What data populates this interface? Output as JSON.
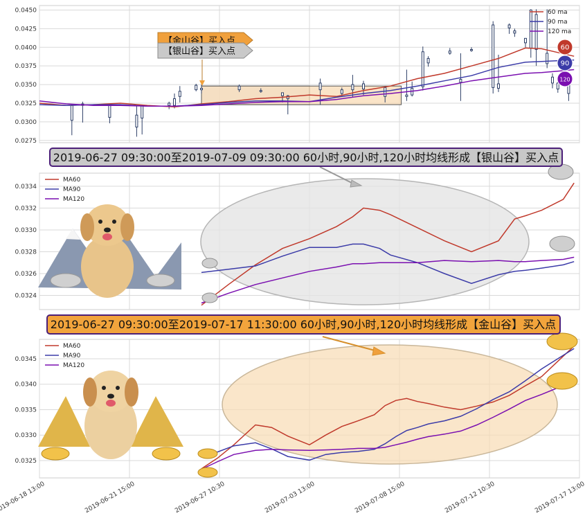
{
  "colors": {
    "ma60": "#c0392b",
    "ma90": "#3b3ba8",
    "ma120": "#7a0fb0",
    "grid": "#d9d9d9",
    "axis_border": "#cccccc",
    "gold_fill": "#f5b860",
    "gold_zone": "#f8d8b0",
    "silver_fill": "#c8c8c8",
    "silver_zone": "#e6e6e6",
    "banner_border": "#4b1f78",
    "candle": "#2c3e66"
  },
  "chart_data": [
    {
      "id": "top",
      "type": "line",
      "title": "",
      "ylim": [
        0.0272,
        0.0456
      ],
      "y_ticks": [
        "0.0275",
        "0.0300",
        "0.0325",
        "0.0350",
        "0.0375",
        "0.0400",
        "0.0425",
        "0.0450"
      ],
      "y_tick_values": [
        0.0275,
        0.03,
        0.0325,
        0.035,
        0.0375,
        0.04,
        0.0425,
        0.045
      ],
      "x_index_range": [
        0,
        100
      ],
      "grid": true,
      "legend_position": "top-right",
      "legend": [
        "60 ma",
        "90 ma",
        "120 ma"
      ],
      "series": [
        {
          "name": "60 ma",
          "x": [
            0,
            5,
            10,
            15,
            20,
            25,
            30,
            35,
            40,
            45,
            50,
            55,
            60,
            65,
            70,
            75,
            80,
            85,
            90,
            93,
            96,
            99
          ],
          "y": [
            0.0325,
            0.0322,
            0.0323,
            0.0325,
            0.0322,
            0.032,
            0.0324,
            0.0327,
            0.0331,
            0.0333,
            0.0336,
            0.0334,
            0.0342,
            0.0348,
            0.0358,
            0.0365,
            0.0375,
            0.0385,
            0.0399,
            0.0398,
            0.0393,
            0.0388
          ]
        },
        {
          "name": "90 ma",
          "x": [
            0,
            5,
            10,
            15,
            20,
            25,
            30,
            35,
            40,
            45,
            50,
            55,
            60,
            65,
            70,
            75,
            80,
            85,
            90,
            93,
            96,
            99
          ],
          "y": [
            0.0323,
            0.0322,
            0.0323,
            0.0323,
            0.0321,
            0.0321,
            0.0323,
            0.0326,
            0.0328,
            0.0328,
            0.0327,
            0.0333,
            0.0338,
            0.0342,
            0.0348,
            0.0355,
            0.0362,
            0.0373,
            0.038,
            0.0381,
            0.0382,
            0.0383
          ]
        },
        {
          "name": "120 ma",
          "x": [
            0,
            5,
            10,
            15,
            20,
            25,
            30,
            35,
            40,
            45,
            50,
            55,
            60,
            65,
            70,
            75,
            80,
            85,
            90,
            93,
            96,
            99
          ],
          "y": [
            0.0328,
            0.0324,
            0.0322,
            0.0322,
            0.0321,
            0.0321,
            0.0322,
            0.0324,
            0.0326,
            0.0327,
            0.0327,
            0.033,
            0.0335,
            0.0338,
            0.0342,
            0.0348,
            0.0355,
            0.036,
            0.0365,
            0.0366,
            0.0368,
            0.037
          ]
        }
      ],
      "candles": [
        {
          "x": 6,
          "open": 0.0322,
          "close": 0.0302,
          "high": 0.0324,
          "low": 0.0282
        },
        {
          "x": 8,
          "open": 0.0322,
          "close": 0.0324,
          "high": 0.0327,
          "low": 0.0299
        },
        {
          "x": 13,
          "open": 0.0322,
          "close": 0.0306,
          "high": 0.0323,
          "low": 0.0298
        },
        {
          "x": 18,
          "open": 0.0309,
          "close": 0.0293,
          "high": 0.0322,
          "low": 0.028
        },
        {
          "x": 19,
          "open": 0.0322,
          "close": 0.0305,
          "high": 0.0322,
          "low": 0.0283
        },
        {
          "x": 24,
          "open": 0.0325,
          "close": 0.0322,
          "high": 0.0327,
          "low": 0.0317
        },
        {
          "x": 25,
          "open": 0.0331,
          "close": 0.0322,
          "high": 0.0338,
          "low": 0.0318
        },
        {
          "x": 26,
          "open": 0.0341,
          "close": 0.0334,
          "high": 0.0348,
          "low": 0.0326
        },
        {
          "x": 29,
          "open": 0.0343,
          "close": 0.0349,
          "high": 0.0351,
          "low": 0.0341
        },
        {
          "x": 30,
          "open": 0.0345,
          "close": 0.0343,
          "high": 0.035,
          "low": 0.0338
        },
        {
          "x": 37,
          "open": 0.0343,
          "close": 0.0348,
          "high": 0.035,
          "low": 0.034
        },
        {
          "x": 41,
          "open": 0.0342,
          "close": 0.0342,
          "high": 0.0345,
          "low": 0.0339
        },
        {
          "x": 45,
          "open": 0.0339,
          "close": 0.0335,
          "high": 0.0339,
          "low": 0.0326
        },
        {
          "x": 46,
          "open": 0.0335,
          "close": 0.0331,
          "high": 0.0336,
          "low": 0.031
        },
        {
          "x": 52,
          "open": 0.0352,
          "close": 0.0343,
          "high": 0.0358,
          "low": 0.0323
        },
        {
          "x": 56,
          "open": 0.0343,
          "close": 0.0338,
          "high": 0.0346,
          "low": 0.0335
        },
        {
          "x": 58,
          "open": 0.035,
          "close": 0.0343,
          "high": 0.0363,
          "low": 0.0333
        },
        {
          "x": 60,
          "open": 0.0351,
          "close": 0.0344,
          "high": 0.0355,
          "low": 0.0336
        },
        {
          "x": 64,
          "open": 0.0334,
          "close": 0.0346,
          "high": 0.0348,
          "low": 0.0326
        },
        {
          "x": 68,
          "open": 0.0334,
          "close": 0.0336,
          "high": 0.037,
          "low": 0.0328
        },
        {
          "x": 69,
          "open": 0.0345,
          "close": 0.0336,
          "high": 0.0354,
          "low": 0.0334
        },
        {
          "x": 71,
          "open": 0.0347,
          "close": 0.0394,
          "high": 0.0401,
          "low": 0.0342
        },
        {
          "x": 72,
          "open": 0.0385,
          "close": 0.0379,
          "high": 0.0388,
          "low": 0.0374
        },
        {
          "x": 76,
          "open": 0.0395,
          "close": 0.0392,
          "high": 0.0399,
          "low": 0.039
        },
        {
          "x": 78,
          "open": 0.0353,
          "close": 0.0357,
          "high": 0.0392,
          "low": 0.0328
        },
        {
          "x": 80,
          "open": 0.0397,
          "close": 0.0396,
          "high": 0.04,
          "low": 0.0394
        },
        {
          "x": 84,
          "open": 0.043,
          "close": 0.0346,
          "high": 0.0435,
          "low": 0.0338
        },
        {
          "x": 85,
          "open": 0.0351,
          "close": 0.0345,
          "high": 0.039,
          "low": 0.034
        },
        {
          "x": 87,
          "open": 0.043,
          "close": 0.0426,
          "high": 0.0432,
          "low": 0.0418
        },
        {
          "x": 88,
          "open": 0.0422,
          "close": 0.0419,
          "high": 0.0425,
          "low": 0.0414
        },
        {
          "x": 90,
          "open": 0.0412,
          "close": 0.0406,
          "high": 0.0412,
          "low": 0.04
        },
        {
          "x": 91,
          "open": 0.045,
          "close": 0.0399,
          "high": 0.0451,
          "low": 0.0386
        },
        {
          "x": 92,
          "open": 0.0444,
          "close": 0.0397,
          "high": 0.0451,
          "low": 0.0375
        },
        {
          "x": 94,
          "open": 0.0392,
          "close": 0.0378,
          "high": 0.0451,
          "low": 0.0372
        },
        {
          "x": 95,
          "open": 0.036,
          "close": 0.0352,
          "high": 0.0365,
          "low": 0.0345
        },
        {
          "x": 96,
          "open": 0.0352,
          "close": 0.0344,
          "high": 0.0355,
          "low": 0.0339
        },
        {
          "x": 98,
          "open": 0.0354,
          "close": 0.0338,
          "high": 0.0358,
          "low": 0.0328
        }
      ],
      "zones": [
        {
          "kind": "silver",
          "x0": 30,
          "x1": 50,
          "y0": 0.0323,
          "y1": 0.0348
        },
        {
          "kind": "gold",
          "x0": 30,
          "x1": 67,
          "y0": 0.0323,
          "y1": 0.0348
        }
      ],
      "badges": [
        "60",
        "90",
        "120"
      ]
    },
    {
      "id": "silver",
      "type": "line",
      "title": "",
      "ylim": [
        0.03227,
        0.03352
      ],
      "y_ticks": [
        "0.0324",
        "0.0326",
        "0.0328",
        "0.0330",
        "0.0332",
        "0.0334"
      ],
      "y_tick_values": [
        0.0324,
        0.0326,
        0.0328,
        0.033,
        0.0332,
        0.0334
      ],
      "x_index_range": [
        0,
        100
      ],
      "grid": true,
      "legend_position": "top-left",
      "legend": [
        "MA60",
        "MA90",
        "MA120"
      ],
      "series": [
        {
          "name": "MA60",
          "x": [
            30,
            35,
            40,
            45,
            50,
            55,
            58,
            60,
            63,
            65,
            70,
            75,
            80,
            85,
            88,
            90,
            93,
            97,
            99
          ],
          "y": [
            0.03231,
            0.0325,
            0.03268,
            0.03283,
            0.03292,
            0.03303,
            0.03312,
            0.0332,
            0.03318,
            0.03314,
            0.03302,
            0.0329,
            0.0328,
            0.0329,
            0.0331,
            0.03313,
            0.03318,
            0.03328,
            0.03343
          ]
        },
        {
          "name": "MA90",
          "x": [
            30,
            35,
            40,
            45,
            50,
            55,
            58,
            60,
            63,
            65,
            70,
            75,
            80,
            85,
            88,
            90,
            93,
            97,
            99
          ],
          "y": [
            0.03261,
            0.03264,
            0.03267,
            0.03276,
            0.03284,
            0.03284,
            0.03287,
            0.03287,
            0.03283,
            0.03277,
            0.0327,
            0.0326,
            0.03251,
            0.03259,
            0.03262,
            0.03263,
            0.03265,
            0.03268,
            0.03271
          ]
        },
        {
          "name": "MA120",
          "x": [
            30,
            35,
            40,
            45,
            50,
            55,
            58,
            60,
            63,
            65,
            70,
            75,
            80,
            85,
            88,
            90,
            93,
            97,
            99
          ],
          "y": [
            0.03233,
            0.03242,
            0.0325,
            0.03256,
            0.03262,
            0.03266,
            0.03269,
            0.03269,
            0.0327,
            0.0327,
            0.0327,
            0.03272,
            0.03271,
            0.03272,
            0.03271,
            0.03271,
            0.03272,
            0.03273,
            0.03275
          ]
        }
      ],
      "zone_label": "2019-06-27 09:30:00至2019-07-09 09:30:00 60小时,90小时,120小时均线形成【银山谷】买入点"
    },
    {
      "id": "gold",
      "type": "line",
      "title": "",
      "ylim": [
        0.03216,
        0.03488
      ],
      "y_ticks": [
        "0.0325",
        "0.0330",
        "0.0335",
        "0.0340",
        "0.0345"
      ],
      "y_tick_values": [
        0.0325,
        0.033,
        0.0335,
        0.034,
        0.0345
      ],
      "x_index_range": [
        0,
        100
      ],
      "grid": true,
      "legend_position": "top-left",
      "legend": [
        "MA60",
        "MA90",
        "MA120"
      ],
      "x_ticks": [
        "2019-06-18 13:00",
        "2019-06-21 15:00",
        "2019-06-27 10:30",
        "2019-07-03 13:00",
        "2019-07-08 15:00",
        "2019-07-12 10:30",
        "2019-07-17 13:00"
      ],
      "x_tick_positions": [
        0,
        16.67,
        33.33,
        50,
        66.67,
        83.33,
        100
      ],
      "series": [
        {
          "name": "MA60",
          "x": [
            30,
            33,
            36,
            40,
            43,
            46,
            50,
            53,
            56,
            59,
            62,
            64,
            66,
            68,
            70,
            72,
            75,
            78,
            81,
            84,
            87,
            90,
            93,
            96,
            99
          ],
          "y": [
            0.03234,
            0.03255,
            0.03281,
            0.0332,
            0.03315,
            0.03298,
            0.03281,
            0.033,
            0.03317,
            0.03328,
            0.0334,
            0.03358,
            0.03368,
            0.03372,
            0.03366,
            0.03362,
            0.03355,
            0.0335,
            0.03357,
            0.03365,
            0.03378,
            0.03397,
            0.03415,
            0.03445,
            0.03475
          ]
        },
        {
          "name": "MA90",
          "x": [
            30,
            33,
            36,
            40,
            43,
            46,
            50,
            53,
            56,
            59,
            62,
            64,
            66,
            68,
            70,
            72,
            75,
            78,
            81,
            84,
            87,
            90,
            93,
            96,
            99
          ],
          "y": [
            0.03262,
            0.03267,
            0.03279,
            0.03285,
            0.03273,
            0.03258,
            0.03251,
            0.03262,
            0.03266,
            0.03268,
            0.03272,
            0.03283,
            0.03297,
            0.03309,
            0.03315,
            0.03322,
            0.03328,
            0.03337,
            0.03352,
            0.0337,
            0.03385,
            0.03407,
            0.0343,
            0.0345,
            0.0347
          ]
        },
        {
          "name": "MA120",
          "x": [
            30,
            33,
            36,
            40,
            43,
            46,
            50,
            53,
            56,
            59,
            62,
            64,
            66,
            68,
            70,
            72,
            75,
            78,
            81,
            84,
            87,
            90,
            93,
            96,
            99
          ],
          "y": [
            0.03233,
            0.03248,
            0.03262,
            0.0327,
            0.03272,
            0.03271,
            0.0327,
            0.03271,
            0.03272,
            0.03274,
            0.03274,
            0.03276,
            0.03281,
            0.03286,
            0.03292,
            0.03297,
            0.03302,
            0.03308,
            0.0332,
            0.03335,
            0.03351,
            0.03368,
            0.0338,
            0.03393,
            0.03398
          ]
        }
      ],
      "zone_label": "2019-06-27 09:30:00至2019-07-17 11:30:00 60小时,90小时,120小时均线形成【金山谷】买入点"
    }
  ],
  "callouts": {
    "gold": "【金山谷】买入点",
    "silver": "【银山谷】买入点"
  }
}
